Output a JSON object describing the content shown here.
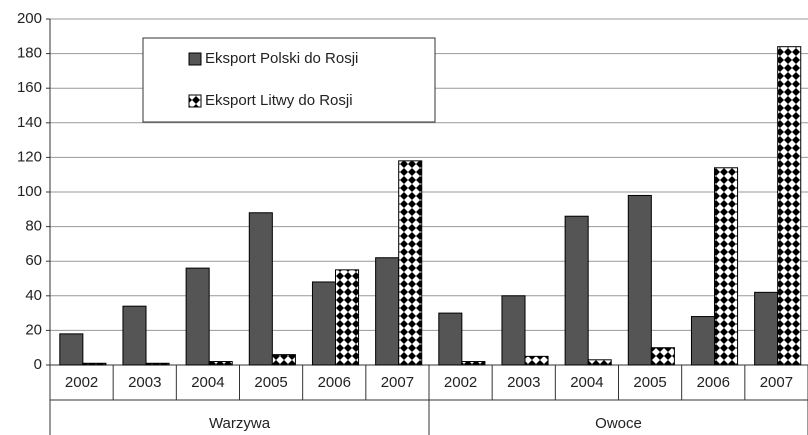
{
  "chart_data": {
    "type": "bar",
    "categories": [
      "2002",
      "2003",
      "2004",
      "2005",
      "2006",
      "2007",
      "2002",
      "2003",
      "2004",
      "2005",
      "2006",
      "2007"
    ],
    "groups": [
      "Warzywa",
      "Owoce"
    ],
    "series": [
      {
        "name": "Eksport Polski do Rosji",
        "color": "#555555",
        "values": [
          18,
          34,
          56,
          88,
          48,
          62,
          30,
          40,
          86,
          98,
          28,
          42
        ]
      },
      {
        "name": "Eksport Litwy do Rosji",
        "color": "#000000",
        "pattern": "diamond",
        "values": [
          1,
          1,
          2,
          6,
          55,
          118,
          2,
          5,
          3,
          10,
          114,
          184
        ]
      }
    ],
    "ylim": [
      0,
      200
    ],
    "yticks": [
      0,
      20,
      40,
      60,
      80,
      100,
      120,
      140,
      160,
      180,
      200
    ],
    "grid": true,
    "legend": "top-left"
  }
}
